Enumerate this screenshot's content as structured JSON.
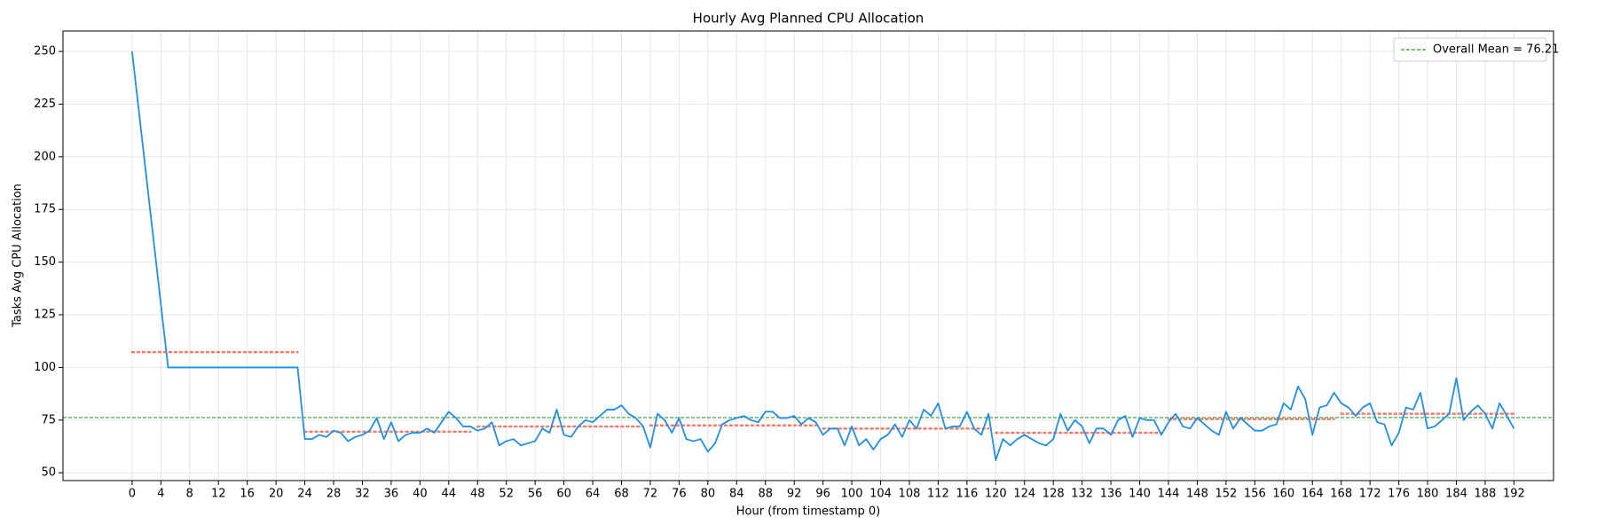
{
  "chart_data": {
    "type": "line",
    "title": "Hourly Avg Planned CPU Allocation",
    "xlabel": "Hour (from timestamp 0)",
    "ylabel": "Tasks Avg CPU Allocation",
    "x": [
      0,
      5,
      6,
      7,
      8,
      9,
      10,
      11,
      12,
      13,
      14,
      15,
      16,
      17,
      18,
      19,
      20,
      21,
      22,
      23,
      24,
      25,
      26,
      27,
      28,
      29,
      30,
      31,
      32,
      33,
      34,
      35,
      36,
      37,
      38,
      39,
      40,
      41,
      42,
      43,
      44,
      45,
      46,
      47,
      48,
      49,
      50,
      51,
      52,
      53,
      54,
      55,
      56,
      57,
      58,
      59,
      60,
      61,
      62,
      63,
      64,
      65,
      66,
      67,
      68,
      69,
      70,
      71,
      72,
      73,
      74,
      75,
      76,
      77,
      78,
      79,
      80,
      81,
      82,
      83,
      84,
      85,
      86,
      87,
      88,
      89,
      90,
      91,
      92,
      93,
      94,
      95,
      96,
      97,
      98,
      99,
      100,
      101,
      102,
      103,
      104,
      105,
      106,
      107,
      108,
      109,
      110,
      111,
      112,
      113,
      114,
      115,
      116,
      117,
      118,
      119,
      120,
      121,
      122,
      123,
      124,
      125,
      126,
      127,
      128,
      129,
      130,
      131,
      132,
      133,
      134,
      135,
      136,
      137,
      138,
      139,
      140,
      141,
      142,
      143,
      144,
      145,
      146,
      147,
      148,
      149,
      150,
      151,
      152,
      153,
      154,
      155,
      156,
      157,
      158,
      159,
      160,
      161,
      162,
      163,
      164,
      165,
      166,
      167,
      168,
      169,
      170,
      171,
      172,
      173,
      174,
      175,
      176,
      177,
      178,
      179,
      180,
      181,
      182,
      183,
      184,
      185,
      186,
      187,
      188,
      189,
      190,
      191,
      192
    ],
    "series": [
      {
        "color": "#1f8fe8",
        "values": [
          250,
          100,
          100,
          100,
          100,
          100,
          100,
          100,
          100,
          100,
          100,
          100,
          100,
          100,
          100,
          100,
          100,
          100,
          100,
          100,
          66,
          66,
          68,
          67,
          70,
          69,
          65,
          67,
          68,
          70,
          76,
          66,
          74,
          65,
          68,
          69,
          69,
          71,
          69,
          74,
          79,
          76,
          72,
          72,
          70,
          71,
          74,
          63,
          65,
          66,
          63,
          64,
          65,
          71,
          69,
          80,
          68,
          67,
          72,
          75,
          74,
          77,
          80,
          80,
          82,
          78,
          76,
          72,
          62,
          78,
          75,
          69,
          76,
          66,
          65,
          66,
          60,
          64,
          73,
          75,
          76,
          77,
          75,
          74,
          79,
          79,
          76,
          76,
          77,
          73,
          76,
          74,
          68,
          71,
          71,
          63,
          72,
          63,
          66,
          61,
          66,
          68,
          73,
          67,
          75,
          71,
          80,
          77,
          83,
          71,
          72,
          72,
          79,
          71,
          68,
          78,
          56,
          66,
          63,
          66,
          68,
          66,
          64,
          63,
          66,
          78,
          70,
          75,
          72,
          64,
          71,
          71,
          68,
          75,
          77,
          67,
          76,
          75,
          75,
          68,
          74,
          78,
          72,
          71,
          76,
          73,
          70,
          68,
          79,
          71,
          76,
          73,
          70,
          70,
          72,
          73,
          83,
          80,
          91,
          85,
          68,
          81,
          82,
          88,
          83,
          81,
          77,
          81,
          83,
          74,
          73,
          63,
          69,
          81,
          80,
          88,
          71,
          72,
          75,
          78,
          95,
          75,
          79,
          82,
          78,
          71,
          83,
          77,
          71
        ]
      }
    ],
    "segments": {
      "color": "#f47a6a",
      "items": [
        {
          "x": [
            0,
            23
          ],
          "value": 107.3
        },
        {
          "x": [
            24,
            47
          ],
          "value": 69.5
        },
        {
          "x": [
            48,
            71
          ],
          "value": 72
        },
        {
          "x": [
            72,
            95
          ],
          "value": 72.5
        },
        {
          "x": [
            96,
            119
          ],
          "value": 71
        },
        {
          "x": [
            120,
            143
          ],
          "value": 69
        },
        {
          "x": [
            144,
            167
          ],
          "value": 75.5
        },
        {
          "x": [
            168,
            192
          ],
          "value": 78
        }
      ]
    },
    "mean_line": {
      "label": "Overall Mean = 76.21",
      "value": 76.21,
      "color": "#2ca02c"
    },
    "legend": "upper right",
    "grid": true,
    "xlim": [
      -9.6,
      197.5
    ],
    "ylim": [
      46.3,
      259.7
    ],
    "xticks": [
      0,
      4,
      8,
      12,
      16,
      20,
      24,
      28,
      32,
      36,
      40,
      44,
      48,
      52,
      56,
      60,
      64,
      68,
      72,
      76,
      80,
      84,
      88,
      92,
      96,
      100,
      104,
      108,
      112,
      116,
      120,
      124,
      128,
      132,
      136,
      140,
      144,
      148,
      152,
      156,
      160,
      164,
      168,
      172,
      176,
      180,
      184,
      188,
      192
    ],
    "yticks": [
      50,
      75,
      100,
      125,
      150,
      175,
      200,
      225,
      250
    ]
  }
}
